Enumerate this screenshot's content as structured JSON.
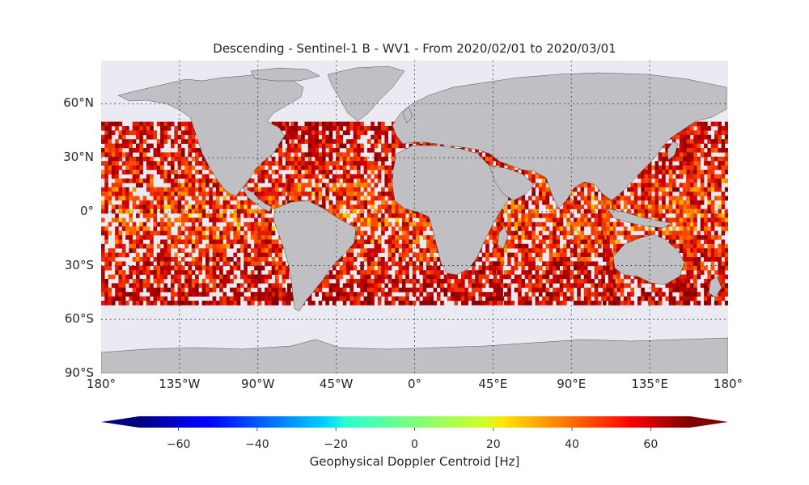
{
  "title": "Descending - Sentinel-1 B - WV1 - From 2020/02/01 to 2020/03/01",
  "map": {
    "projection": "PlateCarree",
    "lon_range": [
      -180,
      180
    ],
    "lat_range": [
      -90,
      90
    ],
    "ocean_color": "#eaeaf2",
    "land_color": "#bfbfc4",
    "data_extent": {
      "lat_max": 50,
      "lat_min": -50
    },
    "gridlines": "dotted",
    "lat_ticks": [
      {
        "value": 60,
        "label": "60°N"
      },
      {
        "value": 30,
        "label": "30°N"
      },
      {
        "value": 0,
        "label": "0°"
      },
      {
        "value": -30,
        "label": "30°S"
      },
      {
        "value": -60,
        "label": "60°S"
      },
      {
        "value": -90,
        "label": "90°S"
      }
    ],
    "lon_ticks": [
      {
        "value": -180,
        "label": "180°"
      },
      {
        "value": -135,
        "label": "135°W"
      },
      {
        "value": -90,
        "label": "90°W"
      },
      {
        "value": -45,
        "label": "45°W"
      },
      {
        "value": 0,
        "label": "0°"
      },
      {
        "value": 45,
        "label": "45°E"
      },
      {
        "value": 90,
        "label": "90°E"
      },
      {
        "value": 135,
        "label": "135°E"
      },
      {
        "value": 180,
        "label": "180°"
      }
    ]
  },
  "colorbar": {
    "label": "Geophysical Doppler Centroid [Hz]",
    "colormap": "jet",
    "vmin": -70,
    "vmax": 70,
    "extend": "both",
    "ticks": [
      {
        "value": -60,
        "label": "−60"
      },
      {
        "value": -40,
        "label": "−40"
      },
      {
        "value": -20,
        "label": "−20"
      },
      {
        "value": 0,
        "label": "0"
      },
      {
        "value": 20,
        "label": "20"
      },
      {
        "value": 40,
        "label": "40"
      },
      {
        "value": 60,
        "label": "60"
      }
    ]
  }
}
